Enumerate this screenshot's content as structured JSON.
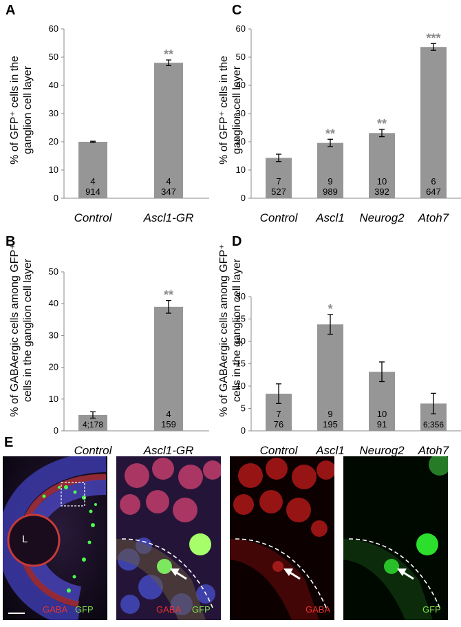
{
  "panels": {
    "A": {
      "letter": "A",
      "ylabel_line1": "% of GFP⁺ cells in the",
      "ylabel_line2": "ganglion cell layer"
    },
    "B": {
      "letter": "B",
      "ylabel_line1": "% of GABAergic cells among GFP⁺",
      "ylabel_line2": "cells in the ganglion cell layer"
    },
    "C": {
      "letter": "C",
      "ylabel_line1": "% of GFP⁺ cells in the",
      "ylabel_line2": "ganglion cell layer"
    },
    "D": {
      "letter": "D",
      "ylabel_line1": "% of GABAergic cells among GFP⁺",
      "ylabel_line2": "cells in the ganglion cell layer"
    },
    "E": {
      "letter": "E"
    }
  },
  "chart_data": [
    {
      "id": "A",
      "type": "bar",
      "categories": [
        "Control",
        "Ascl1-GR"
      ],
      "values": [
        20,
        48
      ],
      "errors": [
        0.2,
        1
      ],
      "ylim": [
        0,
        60
      ],
      "yticks": [
        0,
        10,
        20,
        30,
        40,
        50,
        60
      ],
      "significance": [
        "",
        "**"
      ],
      "labels": [
        [
          "4",
          "914"
        ],
        [
          "4",
          "347"
        ]
      ],
      "bar_color": "#969696"
    },
    {
      "id": "B",
      "type": "bar",
      "categories": [
        "Control",
        "Ascl1-GR"
      ],
      "values": [
        5,
        39
      ],
      "errors": [
        1,
        2
      ],
      "ylim": [
        0,
        50
      ],
      "yticks": [
        0,
        10,
        20,
        30,
        40,
        50
      ],
      "significance": [
        "",
        "**"
      ],
      "labels": [
        [
          "4;178"
        ],
        [
          "4",
          "159"
        ]
      ],
      "bar_color": "#969696"
    },
    {
      "id": "C",
      "type": "bar",
      "categories": [
        "Control",
        "Ascl1",
        "Neurog2",
        "Atoh7"
      ],
      "values": [
        14.3,
        19.6,
        23.1,
        53.6
      ],
      "errors": [
        1.3,
        1.3,
        1.3,
        1.2
      ],
      "ylim": [
        0,
        60
      ],
      "yticks": [
        0,
        10,
        20,
        30,
        40,
        50,
        60
      ],
      "significance": [
        "",
        "**",
        "**",
        "***"
      ],
      "labels": [
        [
          "7",
          "527"
        ],
        [
          "9",
          "989"
        ],
        [
          "10",
          "392"
        ],
        [
          "6",
          "647"
        ]
      ],
      "bar_color": "#969696"
    },
    {
      "id": "D",
      "type": "bar",
      "categories": [
        "Control",
        "Ascl1",
        "Neurog2",
        "Atoh7"
      ],
      "values": [
        8.3,
        23.8,
        13.2,
        6.1
      ],
      "errors": [
        2.2,
        2.2,
        2.2,
        2.3
      ],
      "ylim": [
        0,
        30
      ],
      "yticks": [
        0,
        5,
        10,
        15,
        20,
        25,
        30
      ],
      "significance": [
        "",
        "*",
        "",
        ""
      ],
      "labels": [
        [
          "7",
          "76"
        ],
        [
          "9",
          "195"
        ],
        [
          "10",
          "91"
        ],
        [
          "6;356"
        ]
      ],
      "bar_color": "#969696"
    }
  ],
  "images": {
    "lens_label": "L",
    "img1": {
      "label1": "GABA",
      "label2": "GFP"
    },
    "img2": {
      "label1": "GABA",
      "label2": "GFP"
    },
    "img3": {
      "label1": "GABA"
    },
    "img4": {
      "label1": "GFP"
    }
  },
  "colors": {
    "gaba": "#e8322e",
    "gfp": "#7de04a",
    "sig": "#8c8c8c"
  }
}
